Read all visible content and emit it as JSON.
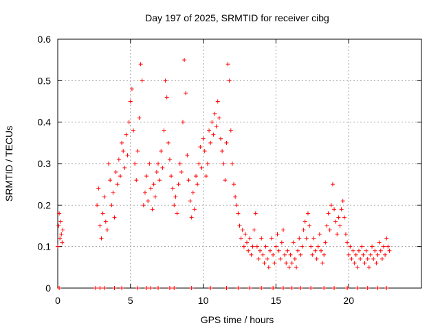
{
  "chart_data": {
    "type": "scatter",
    "title": "Day 197 of 2025, SRMTID for receiver cibg",
    "xlabel": "GPS time / hours",
    "ylabel": "SRMTID / TECUs",
    "xlim": [
      0,
      25
    ],
    "ylim": [
      0,
      0.6
    ],
    "x_ticks": [
      0,
      5,
      10,
      15,
      20
    ],
    "x_tick_labels": [
      "0",
      "5",
      "10",
      "15",
      "20"
    ],
    "y_ticks": [
      0,
      0.1,
      0.2,
      0.3,
      0.4,
      0.5,
      0.6
    ],
    "y_tick_labels": [
      "0",
      "0.1",
      "0.2",
      "0.3",
      "0.4",
      "0.5",
      "0.6"
    ],
    "grid": true,
    "marker": "plus",
    "color": "#ff0000",
    "series": [
      {
        "name": "SRMTID",
        "points": [
          [
            0.0,
            0.1
          ],
          [
            0.05,
            0.15
          ],
          [
            0.1,
            0.18
          ],
          [
            0.15,
            0.12
          ],
          [
            0.2,
            0.16
          ],
          [
            0.25,
            0.13
          ],
          [
            0.3,
            0.11
          ],
          [
            0.35,
            0.14
          ],
          [
            2.7,
            0.2
          ],
          [
            2.8,
            0.24
          ],
          [
            2.9,
            0.15
          ],
          [
            3.0,
            0.12
          ],
          [
            3.1,
            0.18
          ],
          [
            3.2,
            0.22
          ],
          [
            3.3,
            0.16
          ],
          [
            3.4,
            0.14
          ],
          [
            3.5,
            0.3
          ],
          [
            3.6,
            0.26
          ],
          [
            3.7,
            0.2
          ],
          [
            3.8,
            0.23
          ],
          [
            3.9,
            0.17
          ],
          [
            4.0,
            0.28
          ],
          [
            4.1,
            0.25
          ],
          [
            4.2,
            0.31
          ],
          [
            4.3,
            0.27
          ],
          [
            4.4,
            0.35
          ],
          [
            4.5,
            0.33
          ],
          [
            4.6,
            0.29
          ],
          [
            4.7,
            0.37
          ],
          [
            4.8,
            0.32
          ],
          [
            4.9,
            0.4
          ],
          [
            5.0,
            0.45
          ],
          [
            5.1,
            0.48
          ],
          [
            5.2,
            0.38
          ],
          [
            5.3,
            0.3
          ],
          [
            5.4,
            0.26
          ],
          [
            5.5,
            0.33
          ],
          [
            5.6,
            0.41
          ],
          [
            5.7,
            0.54
          ],
          [
            5.8,
            0.5
          ],
          [
            5.9,
            0.2
          ],
          [
            6.0,
            0.23
          ],
          [
            6.1,
            0.27
          ],
          [
            6.2,
            0.21
          ],
          [
            6.3,
            0.3
          ],
          [
            6.4,
            0.24
          ],
          [
            6.5,
            0.19
          ],
          [
            6.6,
            0.25
          ],
          [
            6.7,
            0.22
          ],
          [
            6.8,
            0.28
          ],
          [
            6.9,
            0.3
          ],
          [
            7.0,
            0.26
          ],
          [
            7.1,
            0.33
          ],
          [
            7.2,
            0.29
          ],
          [
            7.3,
            0.38
          ],
          [
            7.4,
            0.5
          ],
          [
            7.5,
            0.46
          ],
          [
            7.6,
            0.35
          ],
          [
            7.7,
            0.31
          ],
          [
            7.8,
            0.27
          ],
          [
            7.9,
            0.24
          ],
          [
            8.0,
            0.2
          ],
          [
            8.1,
            0.22
          ],
          [
            8.2,
            0.18
          ],
          [
            8.3,
            0.25
          ],
          [
            8.4,
            0.3
          ],
          [
            8.5,
            0.28
          ],
          [
            8.6,
            0.4
          ],
          [
            8.7,
            0.55
          ],
          [
            8.8,
            0.47
          ],
          [
            8.9,
            0.32
          ],
          [
            9.0,
            0.26
          ],
          [
            9.1,
            0.21
          ],
          [
            9.2,
            0.17
          ],
          [
            9.3,
            0.23
          ],
          [
            9.4,
            0.19
          ],
          [
            9.5,
            0.27
          ],
          [
            9.6,
            0.25
          ],
          [
            9.7,
            0.3
          ],
          [
            9.8,
            0.34
          ],
          [
            9.9,
            0.29
          ],
          [
            10.0,
            0.36
          ],
          [
            10.1,
            0.33
          ],
          [
            10.2,
            0.27
          ],
          [
            10.3,
            0.3
          ],
          [
            10.4,
            0.38
          ],
          [
            10.5,
            0.35
          ],
          [
            10.6,
            0.4
          ],
          [
            10.7,
            0.37
          ],
          [
            10.8,
            0.42
          ],
          [
            10.9,
            0.39
          ],
          [
            11.0,
            0.45
          ],
          [
            11.1,
            0.41
          ],
          [
            11.2,
            0.36
          ],
          [
            11.3,
            0.33
          ],
          [
            11.4,
            0.3
          ],
          [
            11.5,
            0.26
          ],
          [
            11.6,
            0.35
          ],
          [
            11.7,
            0.54
          ],
          [
            11.8,
            0.5
          ],
          [
            11.9,
            0.38
          ],
          [
            12.0,
            0.3
          ],
          [
            12.1,
            0.25
          ],
          [
            12.2,
            0.22
          ],
          [
            12.3,
            0.2
          ],
          [
            12.4,
            0.18
          ],
          [
            12.5,
            0.15
          ],
          [
            12.6,
            0.12
          ],
          [
            12.7,
            0.14
          ],
          [
            12.8,
            0.1
          ],
          [
            12.9,
            0.13
          ],
          [
            13.0,
            0.11
          ],
          [
            13.1,
            0.09
          ],
          [
            13.2,
            0.12
          ],
          [
            13.3,
            0.08
          ],
          [
            13.4,
            0.1
          ],
          [
            13.5,
            0.14
          ],
          [
            13.6,
            0.18
          ],
          [
            13.7,
            0.1
          ],
          [
            13.8,
            0.07
          ],
          [
            13.9,
            0.09
          ],
          [
            14.0,
            0.12
          ],
          [
            14.1,
            0.08
          ],
          [
            14.2,
            0.06
          ],
          [
            14.3,
            0.1
          ],
          [
            14.4,
            0.07
          ],
          [
            14.5,
            0.05
          ],
          [
            14.6,
            0.09
          ],
          [
            14.7,
            0.12
          ],
          [
            14.8,
            0.08
          ],
          [
            14.9,
            0.06
          ],
          [
            15.0,
            0.1
          ],
          [
            15.1,
            0.13
          ],
          [
            15.2,
            0.09
          ],
          [
            15.3,
            0.07
          ],
          [
            15.4,
            0.11
          ],
          [
            15.5,
            0.14
          ],
          [
            15.6,
            0.08
          ],
          [
            15.7,
            0.06
          ],
          [
            15.8,
            0.09
          ],
          [
            15.9,
            0.05
          ],
          [
            16.0,
            0.08
          ],
          [
            16.1,
            0.06
          ],
          [
            16.2,
            0.11
          ],
          [
            16.3,
            0.07
          ],
          [
            16.4,
            0.05
          ],
          [
            16.5,
            0.09
          ],
          [
            16.6,
            0.12
          ],
          [
            16.7,
            0.08
          ],
          [
            16.8,
            0.1
          ],
          [
            16.9,
            0.14
          ],
          [
            17.0,
            0.16
          ],
          [
            17.1,
            0.12
          ],
          [
            17.2,
            0.18
          ],
          [
            17.3,
            0.15
          ],
          [
            17.4,
            0.1
          ],
          [
            17.5,
            0.08
          ],
          [
            17.6,
            0.12
          ],
          [
            17.7,
            0.09
          ],
          [
            17.8,
            0.07
          ],
          [
            17.9,
            0.1
          ],
          [
            18.0,
            0.13
          ],
          [
            18.1,
            0.09
          ],
          [
            18.2,
            0.06
          ],
          [
            18.3,
            0.08
          ],
          [
            18.4,
            0.11
          ],
          [
            18.5,
            0.15
          ],
          [
            18.6,
            0.18
          ],
          [
            18.7,
            0.14
          ],
          [
            18.8,
            0.2
          ],
          [
            18.9,
            0.25
          ],
          [
            19.0,
            0.19
          ],
          [
            19.1,
            0.16
          ],
          [
            19.2,
            0.13
          ],
          [
            19.3,
            0.17
          ],
          [
            19.4,
            0.15
          ],
          [
            19.5,
            0.19
          ],
          [
            19.6,
            0.21
          ],
          [
            19.7,
            0.17
          ],
          [
            19.8,
            0.13
          ],
          [
            19.9,
            0.11
          ],
          [
            20.0,
            0.08
          ],
          [
            20.1,
            0.1
          ],
          [
            20.2,
            0.07
          ],
          [
            20.3,
            0.09
          ],
          [
            20.4,
            0.06
          ],
          [
            20.5,
            0.08
          ],
          [
            20.6,
            0.05
          ],
          [
            20.7,
            0.09
          ],
          [
            20.8,
            0.07
          ],
          [
            20.9,
            0.1
          ],
          [
            21.0,
            0.08
          ],
          [
            21.1,
            0.06
          ],
          [
            21.2,
            0.09
          ],
          [
            21.3,
            0.07
          ],
          [
            21.4,
            0.05
          ],
          [
            21.5,
            0.08
          ],
          [
            21.6,
            0.1
          ],
          [
            21.7,
            0.07
          ],
          [
            21.8,
            0.09
          ],
          [
            21.9,
            0.06
          ],
          [
            22.0,
            0.08
          ],
          [
            22.1,
            0.11
          ],
          [
            22.2,
            0.09
          ],
          [
            22.3,
            0.07
          ],
          [
            22.4,
            0.1
          ],
          [
            22.5,
            0.08
          ],
          [
            22.6,
            0.12
          ],
          [
            22.7,
            0.1
          ],
          [
            22.8,
            0.09
          ],
          [
            0.1,
            0.0
          ],
          [
            2.6,
            0.0
          ],
          [
            2.9,
            0.0
          ],
          [
            3.2,
            0.0
          ],
          [
            3.9,
            0.0
          ],
          [
            4.4,
            0.0
          ],
          [
            5.5,
            0.0
          ],
          [
            6.1,
            0.0
          ],
          [
            6.4,
            0.0
          ],
          [
            6.9,
            0.0
          ],
          [
            7.7,
            0.0
          ],
          [
            8.0,
            0.0
          ],
          [
            9.2,
            0.0
          ],
          [
            10.5,
            0.0
          ],
          [
            11.6,
            0.0
          ],
          [
            12.4,
            0.0
          ],
          [
            13.2,
            0.0
          ],
          [
            14.0,
            0.0
          ],
          [
            14.8,
            0.0
          ],
          [
            15.5,
            0.0
          ],
          [
            16.1,
            0.0
          ],
          [
            16.7,
            0.0
          ],
          [
            17.4,
            0.0
          ],
          [
            18.3,
            0.0
          ],
          [
            19.0,
            0.0
          ],
          [
            19.9,
            0.0
          ],
          [
            20.6,
            0.0
          ],
          [
            21.3,
            0.0
          ],
          [
            22.0,
            0.0
          ],
          [
            22.6,
            0.0
          ]
        ]
      }
    ]
  }
}
